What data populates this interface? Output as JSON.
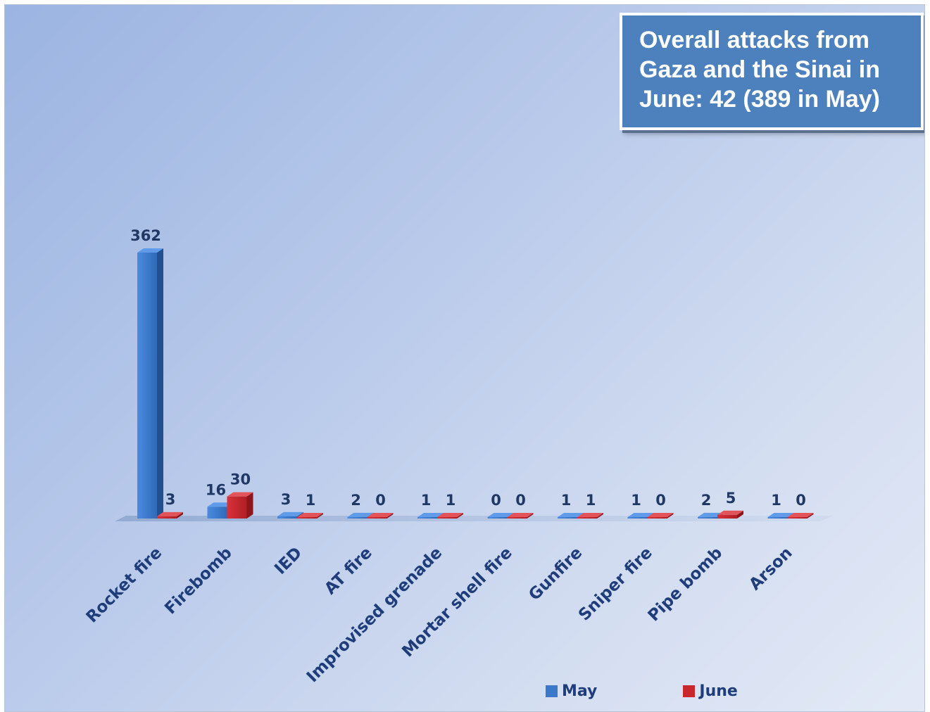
{
  "chart_data": {
    "type": "bar",
    "title": "Overall attacks from Gaza and the Sinai in June: 42 (389 in May)",
    "categories": [
      "Rocket fire",
      "Firebomb",
      "IED",
      "AT fire",
      "Improvised grenade",
      "Mortar shell fire",
      "Gunfire",
      "Sniper fire",
      "Pipe bomb",
      "Arson"
    ],
    "series": [
      {
        "name": "May",
        "color": "#3b78c9",
        "values": [
          362,
          16,
          3,
          2,
          1,
          0,
          1,
          1,
          2,
          1
        ]
      },
      {
        "name": "June",
        "color": "#c8282d",
        "values": [
          3,
          30,
          1,
          0,
          1,
          0,
          1,
          0,
          5,
          0
        ]
      }
    ],
    "ylim": [
      0,
      362
    ],
    "grid": false,
    "legend": "bottom-right",
    "xlabel": "",
    "ylabel": ""
  }
}
